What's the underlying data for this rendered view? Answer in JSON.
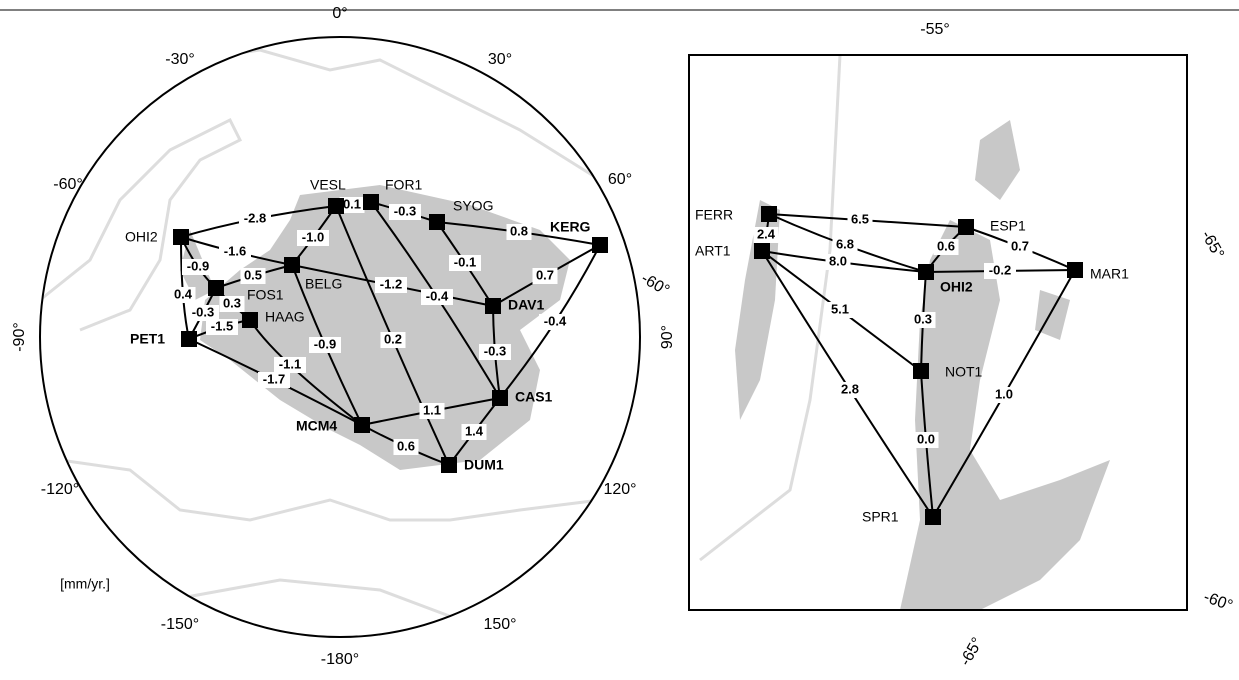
{
  "left_map": {
    "stations": [
      {
        "name": "VESL"
      },
      {
        "name": "FOR1"
      },
      {
        "name": "SYOG"
      },
      {
        "name": "KERG"
      },
      {
        "name": "OHI2"
      },
      {
        "name": "BELG"
      },
      {
        "name": "FOS1"
      },
      {
        "name": "HAAG"
      },
      {
        "name": "PET1"
      },
      {
        "name": "DAV1"
      },
      {
        "name": "CAS1"
      },
      {
        "name": "MCM4"
      },
      {
        "name": "DUM1"
      }
    ],
    "baselines": [
      {
        "label": "-2.8"
      },
      {
        "label": "0.1"
      },
      {
        "label": "-0.3"
      },
      {
        "label": "0.8"
      },
      {
        "label": "-1.0"
      },
      {
        "label": "-1.6"
      },
      {
        "label": "0.5"
      },
      {
        "label": "-0.9"
      },
      {
        "label": "0.4"
      },
      {
        "label": "-0.3"
      },
      {
        "label": "0.3"
      },
      {
        "label": "-1.5"
      },
      {
        "label": "-1.2"
      },
      {
        "label": "-0.4"
      },
      {
        "label": "-0.1"
      },
      {
        "label": "0.7"
      },
      {
        "label": "-0.4"
      },
      {
        "label": "-0.3"
      },
      {
        "label": "-0.9"
      },
      {
        "label": "0.2"
      },
      {
        "label": "-1.1"
      },
      {
        "label": "-1.7"
      },
      {
        "label": "1.1"
      },
      {
        "label": "0.6"
      },
      {
        "label": "1.4"
      }
    ],
    "graticule_labels": [
      "0°",
      "30°",
      "60°",
      "-60°",
      "-30°",
      "-90°",
      "90°",
      "-120°",
      "120°",
      "-150°",
      "150°",
      "-180°",
      "-60°"
    ],
    "unit": "[mm/yr.]"
  },
  "right_map": {
    "stations": [
      {
        "name": "FERR"
      },
      {
        "name": "ESP1"
      },
      {
        "name": "ART1"
      },
      {
        "name": "OHI2"
      },
      {
        "name": "MAR1"
      },
      {
        "name": "NOT1"
      },
      {
        "name": "SPR1"
      }
    ],
    "baselines": [
      {
        "label": "6.5"
      },
      {
        "label": "6.8"
      },
      {
        "label": "8.0"
      },
      {
        "label": "0.6"
      },
      {
        "label": "0.7"
      },
      {
        "label": "-0.2"
      },
      {
        "label": "2.4"
      },
      {
        "label": "5.1"
      },
      {
        "label": "0.3"
      },
      {
        "label": "2.8"
      },
      {
        "label": "0.0"
      },
      {
        "label": "1.0"
      }
    ],
    "graticule_labels": [
      "-55°",
      "-65°",
      "-60°",
      "-65°"
    ]
  }
}
